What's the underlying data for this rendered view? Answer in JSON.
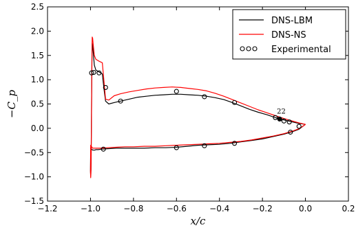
{
  "chart_data": {
    "type": "line",
    "xlabel": "x/c",
    "ylabel": "−C_p",
    "xlim": [
      -1.2,
      0.2
    ],
    "ylim": [
      -1.5,
      2.5
    ],
    "xticks": [
      -1.2,
      -1.0,
      -0.8,
      -0.6,
      -0.4,
      -0.2,
      0.0,
      0.2
    ],
    "xtick_labels": [
      "−1.2",
      "−1.0",
      "−0.8",
      "−0.6",
      "−0.4",
      "−0.2",
      "0.0",
      "0.2"
    ],
    "yticks": [
      -1.5,
      -1.0,
      -0.5,
      0.0,
      0.5,
      1.0,
      1.5,
      2.0,
      2.5
    ],
    "ytick_labels": [
      "−1.5",
      "−1.0",
      "−0.5",
      "0.0",
      "0.5",
      "1.0",
      "1.5",
      "2.0",
      "2.5"
    ],
    "grid": false,
    "legend_position": "top-right",
    "series": [
      {
        "name": "DNS-LBM",
        "color": "#000000",
        "style": "line",
        "x": [
          0.0,
          -0.03,
          -0.06,
          -0.1,
          -0.14,
          -0.18,
          -0.22,
          -0.26,
          -0.3,
          -0.34,
          -0.38,
          -0.42,
          -0.46,
          -0.5,
          -0.54,
          -0.58,
          -0.62,
          -0.66,
          -0.7,
          -0.74,
          -0.78,
          -0.82,
          -0.86,
          -0.89,
          -0.915,
          -0.93,
          -0.937,
          -0.945,
          -0.96,
          -0.975,
          -0.982,
          -0.985,
          -0.988,
          -0.99,
          -0.992,
          -0.993,
          -0.994,
          -0.995,
          -0.996,
          -0.997,
          -0.998,
          -0.999,
          -1.0,
          -0.999,
          -0.995,
          -0.99,
          -0.985,
          -0.98,
          -0.975,
          -0.965,
          -0.95,
          -0.92,
          -0.88,
          -0.84,
          -0.8,
          -0.75,
          -0.7,
          -0.65,
          -0.6,
          -0.55,
          -0.5,
          -0.45,
          -0.4,
          -0.35,
          -0.3,
          -0.25,
          -0.2,
          -0.15,
          -0.1,
          -0.06,
          -0.03,
          0.0
        ],
        "y": [
          0.08,
          0.1,
          0.13,
          0.17,
          0.22,
          0.28,
          0.33,
          0.39,
          0.46,
          0.53,
          0.59,
          0.63,
          0.66,
          0.68,
          0.69,
          0.7,
          0.7,
          0.69,
          0.68,
          0.66,
          0.64,
          0.6,
          0.56,
          0.53,
          0.5,
          0.56,
          0.8,
          1.12,
          1.16,
          1.2,
          1.3,
          1.45,
          1.6,
          1.7,
          1.75,
          1.5,
          1.0,
          0.5,
          0.0,
          -0.5,
          -0.85,
          -0.98,
          -0.88,
          -0.4,
          -0.43,
          -0.45,
          -0.45,
          -0.45,
          -0.44,
          -0.44,
          -0.43,
          -0.42,
          -0.41,
          -0.41,
          -0.41,
          -0.41,
          -0.4,
          -0.4,
          -0.39,
          -0.37,
          -0.35,
          -0.34,
          -0.33,
          -0.31,
          -0.28,
          -0.25,
          -0.22,
          -0.17,
          -0.12,
          -0.07,
          -0.02,
          0.08
        ]
      },
      {
        "name": "DNS-NS",
        "color": "#ff0000",
        "style": "line",
        "x": [
          0.0,
          -0.03,
          -0.06,
          -0.1,
          -0.14,
          -0.18,
          -0.22,
          -0.26,
          -0.3,
          -0.34,
          -0.38,
          -0.42,
          -0.46,
          -0.5,
          -0.54,
          -0.58,
          -0.62,
          -0.66,
          -0.7,
          -0.74,
          -0.78,
          -0.82,
          -0.86,
          -0.89,
          -0.915,
          -0.93,
          -0.937,
          -0.945,
          -0.96,
          -0.975,
          -0.982,
          -0.985,
          -0.988,
          -0.99,
          -0.992,
          -0.993,
          -0.994,
          -0.995,
          -0.996,
          -0.997,
          -0.998,
          -0.999,
          -1.0,
          -0.999,
          -0.995,
          -0.99,
          -0.985,
          -0.98,
          -0.975,
          -0.965,
          -0.95,
          -0.92,
          -0.88,
          -0.84,
          -0.8,
          -0.75,
          -0.7,
          -0.65,
          -0.6,
          -0.55,
          -0.5,
          -0.45,
          -0.4,
          -0.35,
          -0.3,
          -0.25,
          -0.2,
          -0.15,
          -0.1,
          -0.06,
          -0.03,
          0.0
        ],
        "y": [
          0.08,
          0.11,
          0.15,
          0.2,
          0.26,
          0.32,
          0.38,
          0.45,
          0.52,
          0.59,
          0.66,
          0.72,
          0.77,
          0.8,
          0.82,
          0.84,
          0.85,
          0.84,
          0.83,
          0.81,
          0.78,
          0.75,
          0.71,
          0.67,
          0.58,
          0.6,
          0.95,
          1.35,
          1.38,
          1.42,
          1.5,
          1.62,
          1.75,
          1.85,
          1.88,
          1.6,
          1.1,
          0.5,
          -0.1,
          -0.6,
          -0.92,
          -1.02,
          -0.9,
          -0.35,
          -0.38,
          -0.41,
          -0.41,
          -0.41,
          -0.41,
          -0.41,
          -0.41,
          -0.4,
          -0.39,
          -0.38,
          -0.38,
          -0.37,
          -0.37,
          -0.36,
          -0.35,
          -0.34,
          -0.33,
          -0.32,
          -0.31,
          -0.29,
          -0.27,
          -0.24,
          -0.2,
          -0.16,
          -0.11,
          -0.06,
          -0.01,
          0.08
        ]
      },
      {
        "name": "Experimental",
        "color": "#000000",
        "style": "marker-circle",
        "x": [
          -0.995,
          -0.985,
          -0.96,
          -0.93,
          -0.86,
          -0.6,
          -0.47,
          -0.33,
          -0.14,
          -0.12,
          -0.1,
          -0.075,
          -0.03,
          -0.94,
          -0.6,
          -0.47,
          -0.33,
          -0.07
        ],
        "y": [
          1.14,
          1.15,
          1.14,
          0.84,
          0.56,
          0.76,
          0.65,
          0.53,
          0.22,
          0.19,
          0.15,
          0.13,
          0.04,
          -0.43,
          -0.4,
          -0.36,
          -0.31,
          -0.08
        ]
      }
    ],
    "annotations": [
      {
        "text": "22",
        "x": -0.12,
        "y": 0.19
      }
    ]
  }
}
